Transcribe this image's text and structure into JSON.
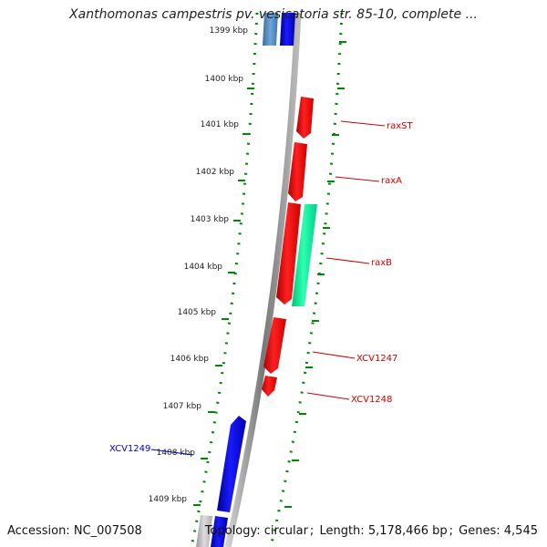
{
  "header": {
    "title": "Xanthomonas campestris pv. vesicatoria str. 85-10, complete ..."
  },
  "footer": {
    "accession_label": "Accession:",
    "accession_value": "NC_007508",
    "topology_label": "Topology:",
    "topology_value": "circular",
    "length_label": "Length:",
    "length_value": "5,178,466 bp",
    "genes_label": "Genes:",
    "genes_value": "4,545"
  },
  "scale": {
    "ticks": [
      "1399 kbp",
      "1400 kbp",
      "1401 kbp",
      "1402 kbp",
      "1403 kbp",
      "1404 kbp",
      "1405 kbp",
      "1406 kbp",
      "1407 kbp",
      "1408 kbp",
      "1409 kbp"
    ]
  },
  "genes": [
    {
      "name": "raxST",
      "color": "#ff0000",
      "strand": "reverse"
    },
    {
      "name": "raxA",
      "color": "#ff0000",
      "strand": "reverse"
    },
    {
      "name": "raxB",
      "color": "#00ee99",
      "strand": "forward"
    },
    {
      "name": "XCV1247",
      "color": "#ff0000",
      "strand": "reverse"
    },
    {
      "name": "XCV1248",
      "color": "#ff0000",
      "strand": "reverse"
    },
    {
      "name": "XCV1249",
      "color": "#0000ff",
      "strand": "forward"
    }
  ],
  "colors": {
    "backbone": "#888888",
    "guide_dots": "#008800",
    "red_gene": "#ff0000",
    "green_gene": "#00ee99",
    "blue_gene": "#0000ff",
    "steelblue_gene": "#4a86c0",
    "grey_gene": "#bbbbbb",
    "label_red": "#cc0000",
    "label_blue": "#0000cc"
  }
}
